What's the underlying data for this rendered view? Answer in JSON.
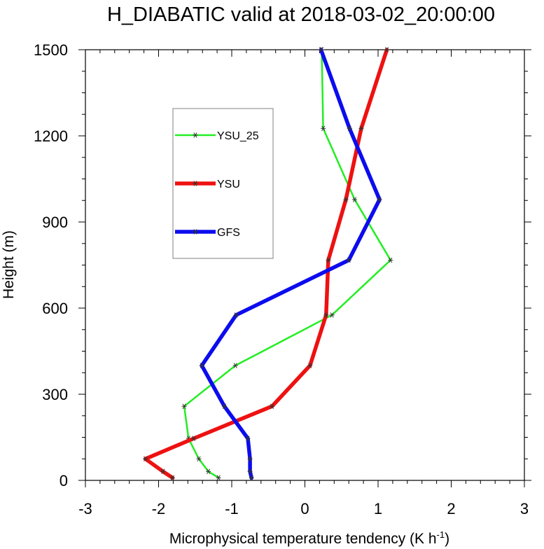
{
  "chart_data": {
    "type": "line",
    "title": "H_DIABATIC valid at 2018-03-02_20:00:00",
    "xlabel": "Microphysical temperature tendency (K h",
    "xlabel_sup": "-1",
    "xlabel_close": ")",
    "ylabel": "Height (m)",
    "xlim": [
      -3,
      3
    ],
    "ylim": [
      0,
      1500
    ],
    "xticks": [
      -3,
      -2,
      -1,
      0,
      1,
      2,
      3
    ],
    "yticks": [
      0,
      300,
      600,
      900,
      1200,
      1500
    ],
    "grid": false,
    "legend_position": "upper-left",
    "series": [
      {
        "name": "YSU_25",
        "color": "#22ee22",
        "y": [
          9,
          31,
          75,
          146,
          258,
          400,
          576,
          767,
          978,
          1226,
          1500
        ],
        "x": [
          -1.18,
          -1.32,
          -1.45,
          -1.59,
          -1.65,
          -0.95,
          0.37,
          1.17,
          0.68,
          0.25,
          0.23
        ]
      },
      {
        "name": "YSU",
        "color": "#ee1111",
        "y": [
          9,
          31,
          75,
          146,
          258,
          400,
          576,
          767,
          978,
          1226,
          1500
        ],
        "x": [
          -1.81,
          -1.94,
          -2.18,
          -1.52,
          -0.45,
          0.07,
          0.29,
          0.32,
          0.56,
          0.77,
          1.12
        ]
      },
      {
        "name": "GFS",
        "color": "#0c0cee",
        "y": [
          9,
          31,
          75,
          146,
          258,
          400,
          576,
          767,
          978,
          1226,
          1500
        ],
        "x": [
          -0.73,
          -0.75,
          -0.75,
          -0.78,
          -1.1,
          -1.41,
          -0.94,
          0.6,
          1.02,
          0.61,
          0.22
        ]
      }
    ]
  }
}
